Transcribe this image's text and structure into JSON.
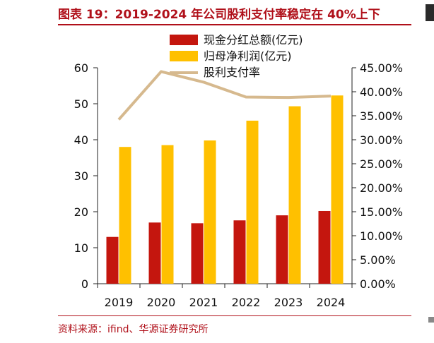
{
  "figure": {
    "title": "图表 19：2019-2024 年公司股利支付率稳定在 40%上下",
    "source": "资料来源：ifind、华源证券研究所"
  },
  "colors": {
    "title_red": "#b0101a",
    "bar_red": "#c4160e",
    "bar_yellow": "#ffc000",
    "line_tan": "#d6b98e"
  },
  "chart_data": {
    "type": "bar",
    "categories": [
      "2019",
      "2020",
      "2021",
      "2022",
      "2023",
      "2024"
    ],
    "series": [
      {
        "name": "现金分红总额(亿元)",
        "type": "bar",
        "axis": "left",
        "values": [
          13.0,
          17.0,
          16.8,
          17.6,
          19.0,
          20.2
        ]
      },
      {
        "name": "归母净利润(亿元)",
        "type": "bar",
        "axis": "left",
        "values": [
          38.0,
          38.5,
          39.8,
          45.3,
          49.3,
          52.3
        ]
      },
      {
        "name": "股利支付率",
        "type": "line",
        "axis": "right",
        "values": [
          34.2,
          44.2,
          42.0,
          38.9,
          38.8,
          39.1
        ]
      }
    ],
    "left_axis": {
      "min": 0,
      "max": 60,
      "ticks": [
        "0",
        "10",
        "20",
        "30",
        "40",
        "50",
        "60"
      ]
    },
    "right_axis": {
      "min": 0,
      "max": 45,
      "ticks": [
        "0.00%",
        "5.00%",
        "10.00%",
        "15.00%",
        "20.00%",
        "25.00%",
        "30.00%",
        "35.00%",
        "40.00%",
        "45.00%"
      ]
    },
    "legend_position": "top-center"
  }
}
